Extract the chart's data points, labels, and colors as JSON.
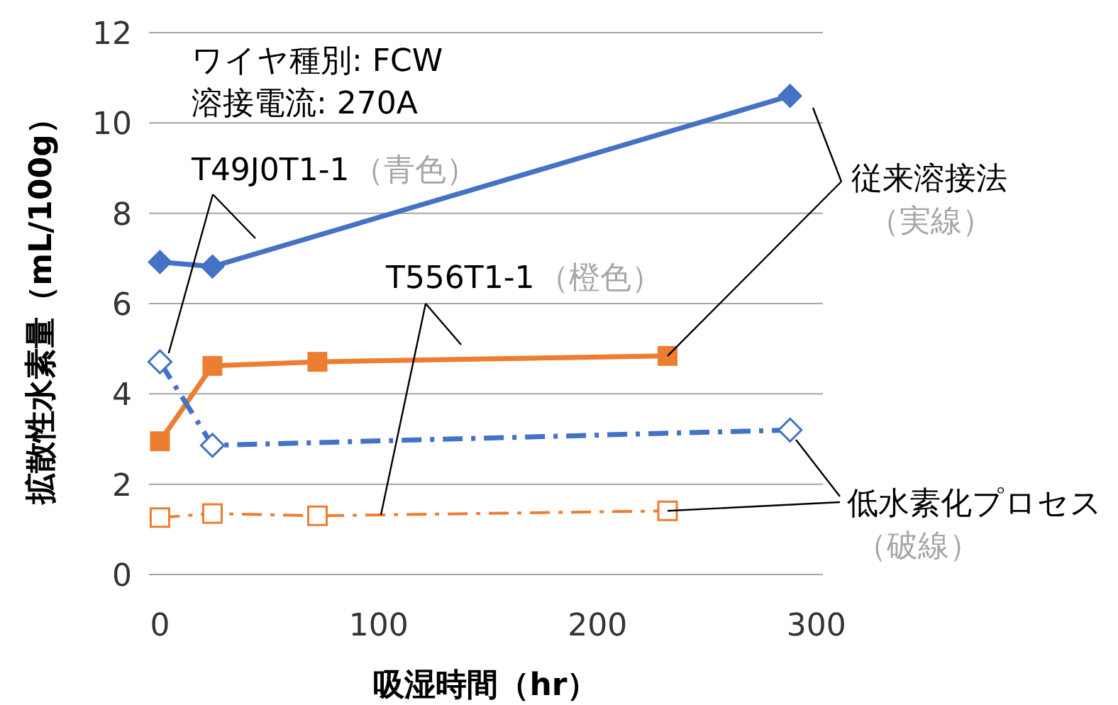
{
  "chart_data": {
    "type": "line",
    "xlabel": "吸湿時間（hr）",
    "ylabel": "拡散性水素量（mL/100g）",
    "xlim": [
      -5,
      303
    ],
    "ylim": [
      0,
      12
    ],
    "xticks": [
      0,
      100,
      200,
      300
    ],
    "yticks": [
      0,
      2,
      4,
      6,
      8,
      10,
      12
    ],
    "grid": "y",
    "series": [
      {
        "color": "#4472c4",
        "x": [
          0,
          24,
          288
        ],
        "values": [
          6.92,
          6.82,
          10.6
        ],
        "marker": "diamond",
        "line_style": "solid"
      },
      {
        "color": "#ed7d31",
        "x": [
          0,
          24,
          72,
          232
        ],
        "values": [
          2.95,
          4.62,
          4.71,
          4.84
        ],
        "marker": "square",
        "line_style": "solid"
      },
      {
        "color": "#4472c4",
        "x": [
          0,
          24,
          288
        ],
        "values": [
          4.71,
          2.86,
          3.2
        ],
        "marker": "diamond",
        "line_style": "dashed"
      },
      {
        "color": "#ed7d31",
        "x": [
          0,
          24,
          72,
          232
        ],
        "values": [
          1.26,
          1.35,
          1.3,
          1.41
        ],
        "marker": "square",
        "line_style": "dashed"
      }
    ],
    "annotations": [
      "ワイヤ種別: FCW",
      "溶接電流: 270A",
      {
        "text": "T49J0T1-1",
        "x": 4,
        "y": 4.9
      },
      "（青色）",
      {
        "text": "T556T1-1",
        "x": 101,
        "y": 1.32
      },
      "（橙色）",
      {
        "text": "従来溶接法",
        "x": 232,
        "y": 4.84
      },
      "（実線）",
      {
        "text": "低水素化プロセス",
        "x": 232,
        "y": 1.41
      },
      "（破線）"
    ]
  }
}
